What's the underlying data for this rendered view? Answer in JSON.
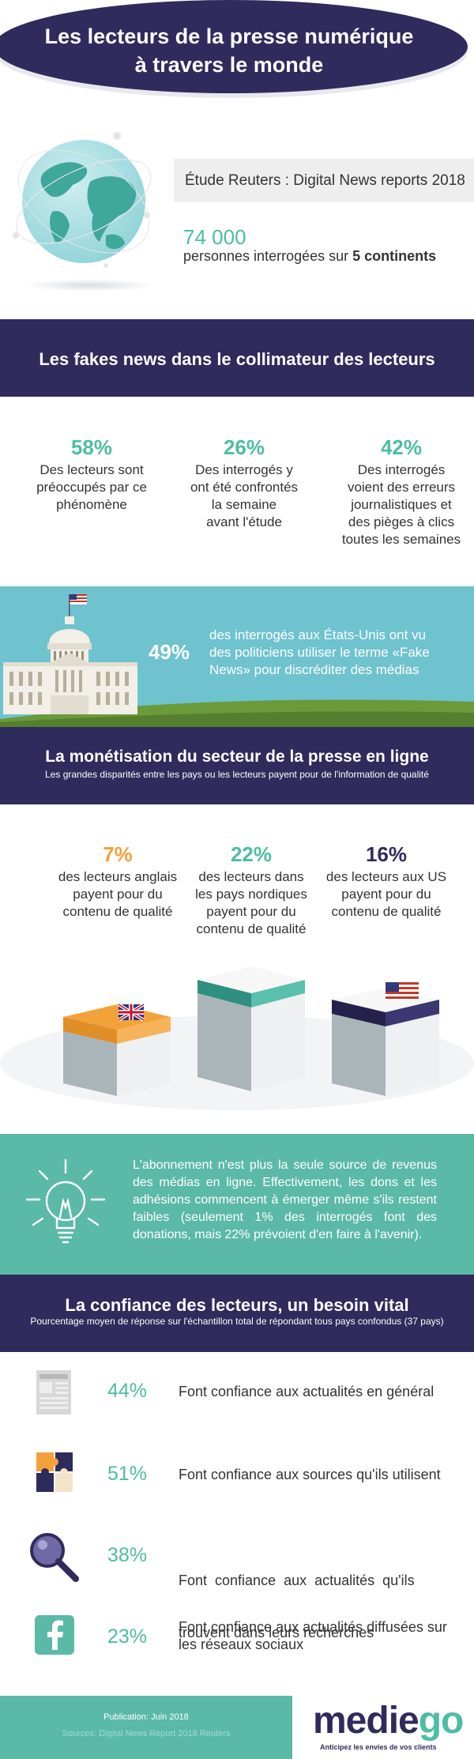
{
  "header": {
    "title_line1": "Les lecteurs de la presse numérique",
    "title_line2": "à travers le monde"
  },
  "intro": {
    "study": "Étude Reuters : Digital News reports 2018",
    "count": "74 000",
    "desc_prefix": "personnes interrogées sur ",
    "desc_bold": "5 continents"
  },
  "fake_news": {
    "title": "Les fakes news dans le collimateur des lecteurs",
    "stats": [
      {
        "pct": "58%",
        "lines": [
          "Des lecteurs sont",
          "préoccupés par ce",
          "phénomène"
        ]
      },
      {
        "pct": "26%",
        "lines": [
          "Des interrogés y",
          "ont été confrontés",
          "la semaine",
          "avant l'étude"
        ]
      },
      {
        "pct": "42%",
        "lines": [
          "Des interrogés",
          "voient des erreurs",
          "journalistiques et",
          "des pièges à clics",
          "toutes les semaines"
        ]
      }
    ],
    "us_pct": "49%",
    "us_lines": [
      "des interrogés aux États-Unis ont vu",
      "des politiciens utiliser le terme «Fake",
      "News» pour discréditer des médias"
    ]
  },
  "monetisation": {
    "title": "La monétisation du secteur de la presse en ligne",
    "subtitle": "Les grandes disparités entre les pays ou les lecteurs payent pour de l'information de qualité",
    "stats": [
      {
        "pct": "7%",
        "color": "#f2a23c",
        "lines": [
          "des lecteurs anglais",
          "payent pour du",
          "contenu de qualité"
        ]
      },
      {
        "pct": "22%",
        "color": "#4dbda3",
        "lines": [
          "des lecteurs dans",
          "les pays nordiques",
          "payent pour du",
          "contenu de qualité"
        ]
      },
      {
        "pct": "16%",
        "color": "#2f2b5c",
        "lines": [
          "des lecteurs aux US",
          "payent pour du",
          "contenu de qualité"
        ]
      }
    ],
    "info": "L'abonnement n'est plus la seule source de revenus des médias en ligne. Effectivement, les dons et les adhésions commencent à émerger même s'ils restent faibles (seulement 1% des interrogés font des donations, mais 22% prévoient d'en faire à l'avenir)."
  },
  "trust": {
    "title": "La confiance des lecteurs, un besoin vital",
    "subtitle": "Pourcentage moyen de réponse sur l'échantillon total de répondant tous pays confondus (37 pays)",
    "rows": [
      {
        "pct": "44%",
        "lines": [
          "Font confiance aux actualités en général"
        ],
        "icon": "newspaper-icon"
      },
      {
        "pct": "51%",
        "lines": [
          "Font confiance aux sources qu'ils utilisent"
        ],
        "icon": "puzzle-icon"
      },
      {
        "pct": "38%",
        "lines": [
          "Font  confiance  aux  actualités  qu'ils",
          "trouvent dans leurs recherches"
        ],
        "icon": "magnifier-icon"
      },
      {
        "pct": "23%",
        "lines": [
          "Font confiance aux actualités diffusées sur",
          "les réseaux sociaux"
        ],
        "icon": "facebook-icon"
      }
    ]
  },
  "footer": {
    "publication": "Publication: Juin 2018",
    "sources": "Sources: Digital News Report 2018 Reuters",
    "logo_a": "medie",
    "logo_b": "go",
    "tagline": "Anticipez les envies de vos clients"
  },
  "colors": {
    "navy": "#2f2b5c",
    "teal": "#4dbda3",
    "orange": "#f2a23c",
    "sky": "#6fc3cf"
  }
}
